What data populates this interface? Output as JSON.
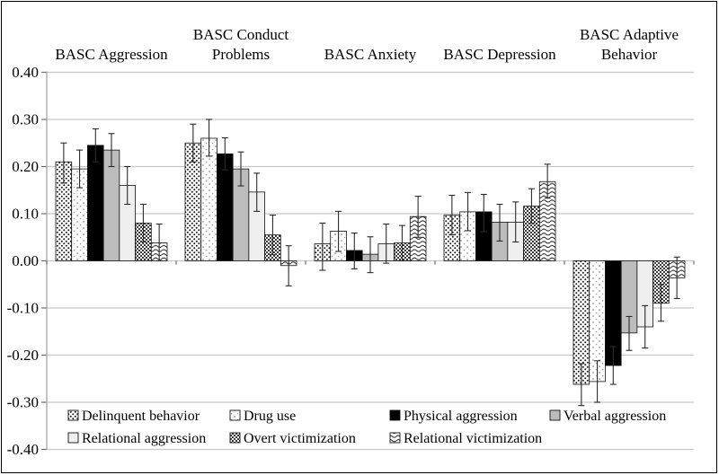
{
  "figure": {
    "background": "#ffffff",
    "border_color": "#000000"
  },
  "chart_data": {
    "type": "bar",
    "title": "",
    "xlabel": "",
    "ylabel": "",
    "ylim": [
      -0.4,
      0.4
    ],
    "ytick_step": 0.1,
    "ytick_labels": [
      "0.40",
      "0.30",
      "0.20",
      "0.10",
      "0.00",
      "-0.10",
      "-0.20",
      "-0.30",
      "-0.40"
    ],
    "grid": true,
    "grid_color": "#c8c8c8",
    "axis_color": "#a8a8a8",
    "error_bar_color": "#2b2b2b",
    "legend_position": "bottom-inside-two-rows",
    "groups": [
      {
        "label": "BASC Aggression",
        "title_lines": [
          "BASC Aggression"
        ]
      },
      {
        "label": "BASC Conduct Problems",
        "title_lines": [
          "BASC Conduct",
          "Problems"
        ]
      },
      {
        "label": "BASC Anxiety",
        "title_lines": [
          "BASC Anxiety"
        ]
      },
      {
        "label": "BASC Depression",
        "title_lines": [
          "BASC Depression"
        ]
      },
      {
        "label": "BASC Adaptive Behavior",
        "title_lines": [
          "BASC Adaptive",
          "Behavior"
        ]
      }
    ],
    "series": [
      {
        "name": "Delinquent behavior",
        "pattern": "dots-dense",
        "values": [
          0.21,
          0.25,
          0.036,
          0.097,
          -0.262
        ],
        "err_low": [
          0.165,
          0.21,
          -0.02,
          0.055,
          -0.307
        ],
        "err_high": [
          0.25,
          0.29,
          0.08,
          0.139,
          -0.218
        ]
      },
      {
        "name": "Drug use",
        "pattern": "dots-sparse",
        "values": [
          0.195,
          0.26,
          0.063,
          0.104,
          -0.256
        ],
        "err_low": [
          0.155,
          0.222,
          0.02,
          0.064,
          -0.3
        ],
        "err_high": [
          0.235,
          0.3,
          0.105,
          0.145,
          -0.212
        ]
      },
      {
        "name": "Physical aggression",
        "pattern": "solid-black",
        "values": [
          0.245,
          0.227,
          0.022,
          0.104,
          -0.222
        ],
        "err_low": [
          0.21,
          0.193,
          -0.017,
          0.062,
          -0.262
        ],
        "err_high": [
          0.28,
          0.261,
          0.059,
          0.141,
          -0.182
        ]
      },
      {
        "name": "Verbal aggression",
        "pattern": "gray",
        "values": [
          0.235,
          0.195,
          0.014,
          0.082,
          -0.153
        ],
        "err_low": [
          0.2,
          0.159,
          -0.025,
          0.042,
          -0.19
        ],
        "err_high": [
          0.27,
          0.231,
          0.051,
          0.12,
          -0.118
        ]
      },
      {
        "name": "Relational aggression",
        "pattern": "light",
        "values": [
          0.16,
          0.146,
          0.036,
          0.082,
          -0.14
        ],
        "err_low": [
          0.12,
          0.105,
          -0.005,
          0.04,
          -0.185
        ],
        "err_high": [
          0.2,
          0.186,
          0.078,
          0.125,
          -0.095
        ]
      },
      {
        "name": "Overt victimization",
        "pattern": "checker",
        "values": [
          0.08,
          0.055,
          0.038,
          0.116,
          -0.09
        ],
        "err_low": [
          0.04,
          0.013,
          0.0,
          0.08,
          -0.128
        ],
        "err_high": [
          0.12,
          0.097,
          0.075,
          0.153,
          -0.05
        ]
      },
      {
        "name": "Relational victimization",
        "pattern": "waves",
        "values": [
          0.038,
          -0.01,
          0.094,
          0.168,
          -0.036
        ],
        "err_low": [
          0.0,
          -0.053,
          0.05,
          0.133,
          -0.08
        ],
        "err_high": [
          0.078,
          0.032,
          0.137,
          0.205,
          0.008
        ]
      }
    ],
    "series_colors": {
      "solid-black": "#000000",
      "gray": "#bcbcbc",
      "light": "#efefef",
      "pattern_ink": "#1a1a1a"
    }
  }
}
